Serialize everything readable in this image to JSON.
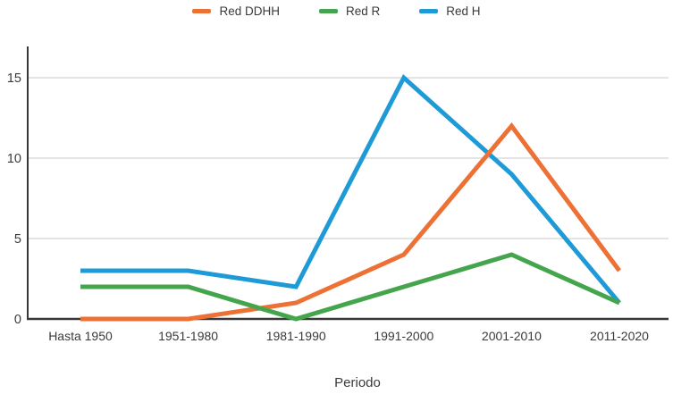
{
  "style": {
    "background": "#ffffff",
    "text_color": "#3a3a3a",
    "grid_color": "#d4d4d4",
    "axis_color": "#383838"
  },
  "chart_data": {
    "type": "line",
    "categories": [
      "Hasta 1950",
      "1951-1980",
      "1981-1990",
      "1991-2000",
      "2001-2010",
      "2011-2020"
    ],
    "series": [
      {
        "name": "Red DDHH",
        "color": "#ED7035",
        "values": [
          0,
          0,
          1,
          4,
          12,
          3
        ]
      },
      {
        "name": "Red R",
        "color": "#44A54D",
        "values": [
          2,
          2,
          0,
          2,
          4,
          1
        ]
      },
      {
        "name": "Red H",
        "color": "#1E9BD6",
        "values": [
          3,
          3,
          2,
          15,
          9,
          1
        ]
      }
    ],
    "title": "",
    "xlabel": "Periodo",
    "ylabel": "",
    "y_ticks": [
      0,
      5,
      10,
      15
    ],
    "ylim": [
      0,
      17
    ],
    "grid": "horizontal-only",
    "legend_position": "top-center",
    "draw_order": [
      "Red H",
      "Red DDHH",
      "Red R"
    ]
  }
}
